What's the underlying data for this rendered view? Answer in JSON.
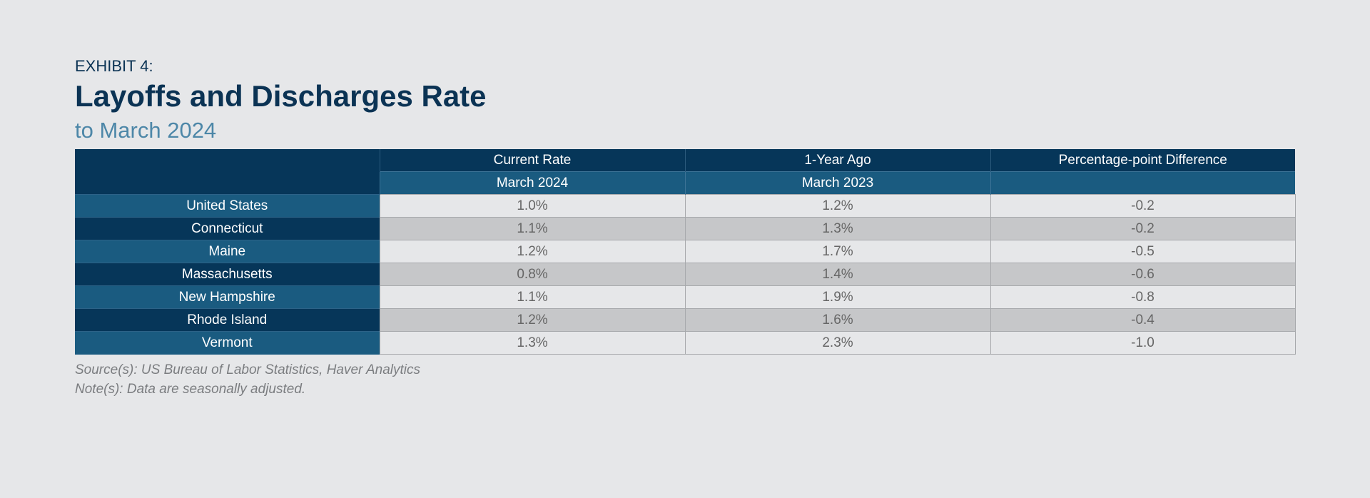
{
  "exhibit": "EXHIBIT 4:",
  "chart_data": {
    "type": "table",
    "title": "Layoffs and Discharges Rate",
    "subtitle": "to March 2024",
    "columns": [
      {
        "header": "Current Rate",
        "subheader": "March 2024"
      },
      {
        "header": "1-Year Ago",
        "subheader": "March 2023"
      },
      {
        "header": "Percentage-point Difference",
        "subheader": ""
      }
    ],
    "rows": [
      {
        "label": "United States",
        "values": [
          "1.0%",
          "1.2%",
          "-0.2"
        ]
      },
      {
        "label": "Connecticut",
        "values": [
          "1.1%",
          "1.3%",
          "-0.2"
        ]
      },
      {
        "label": "Maine",
        "values": [
          "1.2%",
          "1.7%",
          "-0.5"
        ]
      },
      {
        "label": "Massachusetts",
        "values": [
          "0.8%",
          "1.4%",
          "-0.6"
        ]
      },
      {
        "label": "New Hampshire",
        "values": [
          "1.1%",
          "1.9%",
          "-0.8"
        ]
      },
      {
        "label": "Rhode Island",
        "values": [
          "1.2%",
          "1.6%",
          "-0.4"
        ]
      },
      {
        "label": "Vermont",
        "values": [
          "1.3%",
          "2.3%",
          "-1.0"
        ]
      }
    ]
  },
  "footnotes": {
    "source": "Source(s): US Bureau of Labor Statistics, Haver Analytics",
    "note": "Note(s): Data are seasonally adjusted."
  },
  "colors": {
    "header_dark": "#063659",
    "header_mid": "#1a5b80",
    "title": "#0b3354",
    "subtitle": "#4d87a8",
    "row_light": "#e6e7e9",
    "row_dark": "#c6c7c9"
  }
}
